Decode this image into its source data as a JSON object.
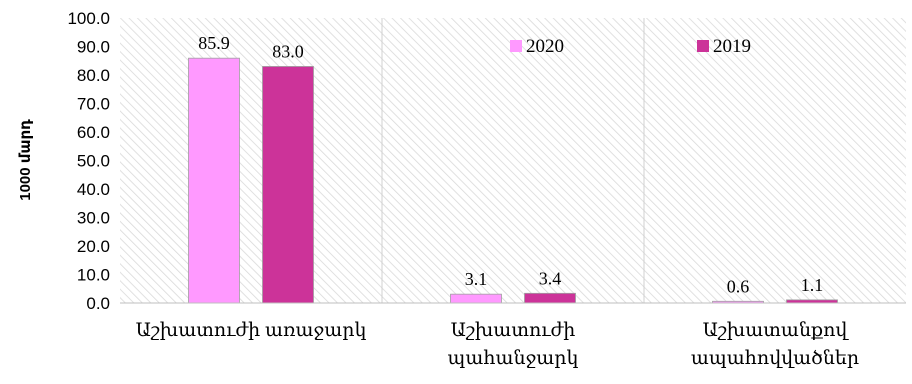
{
  "chart_data": {
    "type": "bar",
    "categories": [
      [
        "Աշխատուժի առաջարկ"
      ],
      [
        "Աշխատուժի",
        "պահանջարկ"
      ],
      [
        "Աշխատանքով",
        "ապահովվածներ"
      ]
    ],
    "series": [
      {
        "name": "2020",
        "values": [
          85.9,
          3.1,
          0.6
        ],
        "labels": [
          "85.9",
          "3.1",
          "0.6"
        ],
        "color": "#ff99ff"
      },
      {
        "name": "2019",
        "values": [
          83.0,
          3.4,
          1.1
        ],
        "labels": [
          "83.0",
          "3.4",
          "1.1"
        ],
        "color": "#cc3399"
      }
    ],
    "ylabel": "1000 մարդ",
    "ylim": [
      0,
      100
    ],
    "yticks": [
      "0.0",
      "10.0",
      "20.0",
      "30.0",
      "40.0",
      "50.0",
      "60.0",
      "70.0",
      "80.0",
      "90.0",
      "100.0"
    ],
    "grid": false,
    "legend": "top-right",
    "background_pattern": "diagonal hatch"
  }
}
